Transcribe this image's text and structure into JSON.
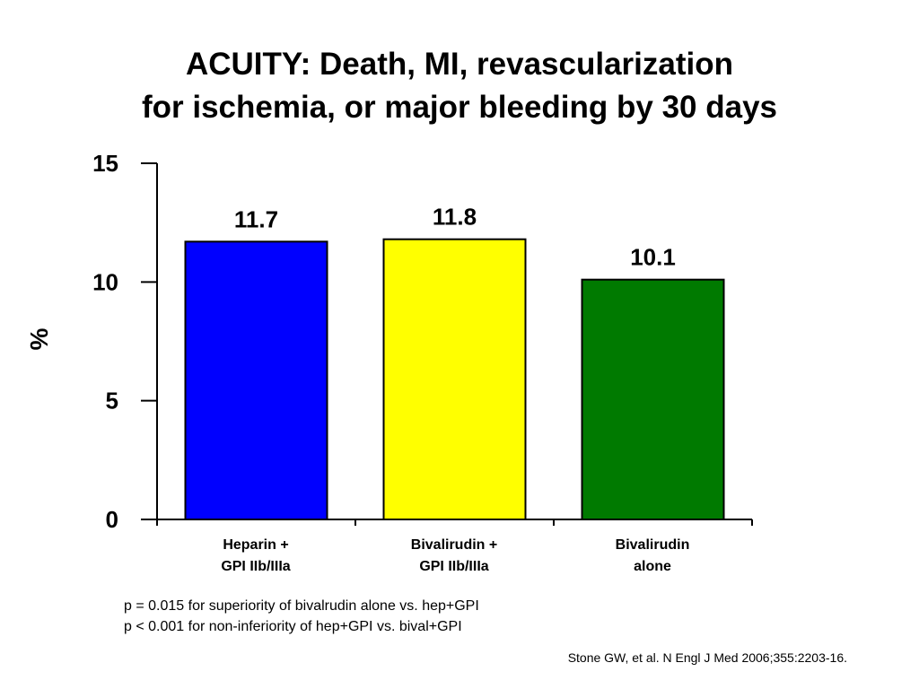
{
  "title": {
    "line1": "ACUITY: Death, MI, revascularization",
    "line2": "for ischemia, or major bleeding by 30 days"
  },
  "chart_data": {
    "type": "bar",
    "categories": [
      [
        "Heparin +",
        "GPI IIb/IIIa"
      ],
      [
        "Bivalirudin +",
        "GPI IIb/IIIa"
      ],
      [
        "Bivalirudin",
        "alone"
      ]
    ],
    "values": [
      11.7,
      11.8,
      10.1
    ],
    "value_labels": [
      "11.7",
      "11.8",
      "10.1"
    ],
    "colors": [
      "#0000ff",
      "#ffff00",
      "#007a00"
    ],
    "ylabel": "%",
    "ylim": [
      0,
      15
    ],
    "yticks": [
      0,
      5,
      10,
      15
    ],
    "ytick_labels": [
      "0",
      "5",
      "10",
      "15"
    ],
    "grid": false,
    "legend": "none"
  },
  "notes": [
    "p = 0.015 for superiority of bivalrudin alone vs. hep+GPI",
    "p < 0.001 for non-inferiority of hep+GPI vs. bival+GPI"
  ],
  "citation": "Stone GW, et al. N Engl J Med 2006;355:2203-16."
}
